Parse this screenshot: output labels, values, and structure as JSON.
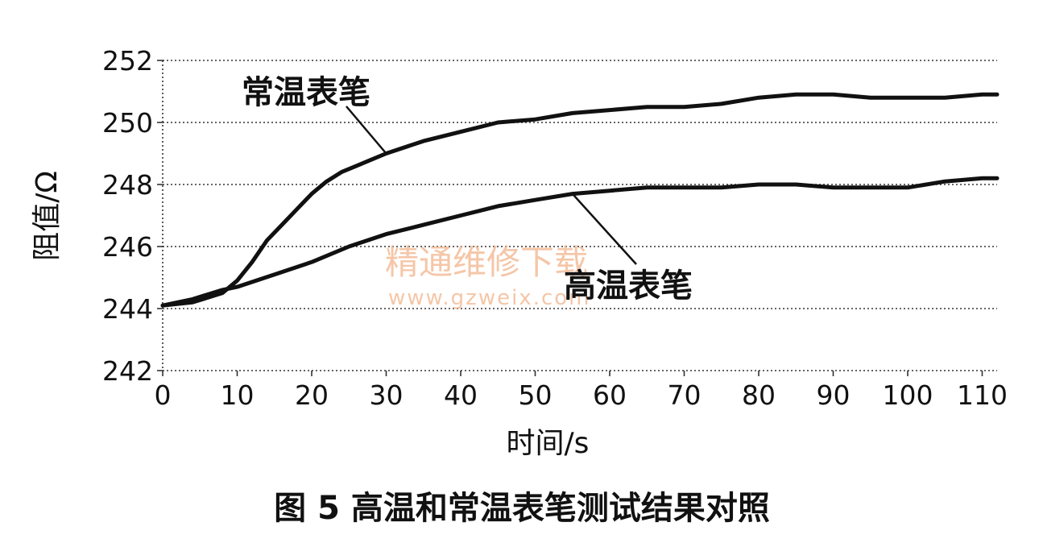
{
  "chart_data": {
    "type": "line",
    "title": "",
    "caption": "图 5   高温和常温表笔测试结果对照",
    "xlabel": "时间/s",
    "ylabel": "阻值/Ω",
    "xlim": [
      0,
      112
    ],
    "ylim": [
      242,
      252
    ],
    "x_ticks": [
      0,
      10,
      20,
      30,
      40,
      50,
      60,
      70,
      80,
      90,
      100,
      110
    ],
    "y_ticks": [
      242,
      244,
      246,
      248,
      250,
      252
    ],
    "grid": true,
    "series": [
      {
        "name": "常温表笔",
        "x": [
          0,
          4,
          8,
          10,
          12,
          14,
          16,
          18,
          20,
          22,
          24,
          26,
          28,
          30,
          35,
          40,
          45,
          50,
          55,
          60,
          65,
          70,
          75,
          80,
          85,
          90,
          95,
          100,
          105,
          110,
          112
        ],
        "y": [
          244.1,
          244.2,
          244.5,
          244.9,
          245.5,
          246.2,
          246.7,
          247.2,
          247.7,
          248.1,
          248.4,
          248.6,
          248.8,
          249.0,
          249.4,
          249.7,
          250.0,
          250.1,
          250.3,
          250.4,
          250.5,
          250.5,
          250.6,
          250.8,
          250.9,
          250.9,
          250.8,
          250.8,
          250.8,
          250.9,
          250.9
        ]
      },
      {
        "name": "高温表笔",
        "x": [
          0,
          4,
          8,
          10,
          15,
          20,
          25,
          30,
          35,
          40,
          45,
          50,
          55,
          60,
          65,
          70,
          75,
          80,
          85,
          90,
          95,
          100,
          105,
          110,
          112
        ],
        "y": [
          244.1,
          244.3,
          244.6,
          244.7,
          245.1,
          245.5,
          246.0,
          246.4,
          246.7,
          247.0,
          247.3,
          247.5,
          247.7,
          247.8,
          247.9,
          247.9,
          247.9,
          248.0,
          248.0,
          247.9,
          247.9,
          247.9,
          248.1,
          248.2,
          248.2
        ]
      }
    ],
    "annotations": [
      {
        "text": "常温表笔",
        "series": 0,
        "points_to_x": 30
      },
      {
        "text": "高温表笔",
        "series": 1,
        "points_to_x": 55
      }
    ],
    "watermark": {
      "text_cn": "精通维修下载",
      "text_url": "www.gzweix.com",
      "color": "#f2b38a"
    }
  }
}
